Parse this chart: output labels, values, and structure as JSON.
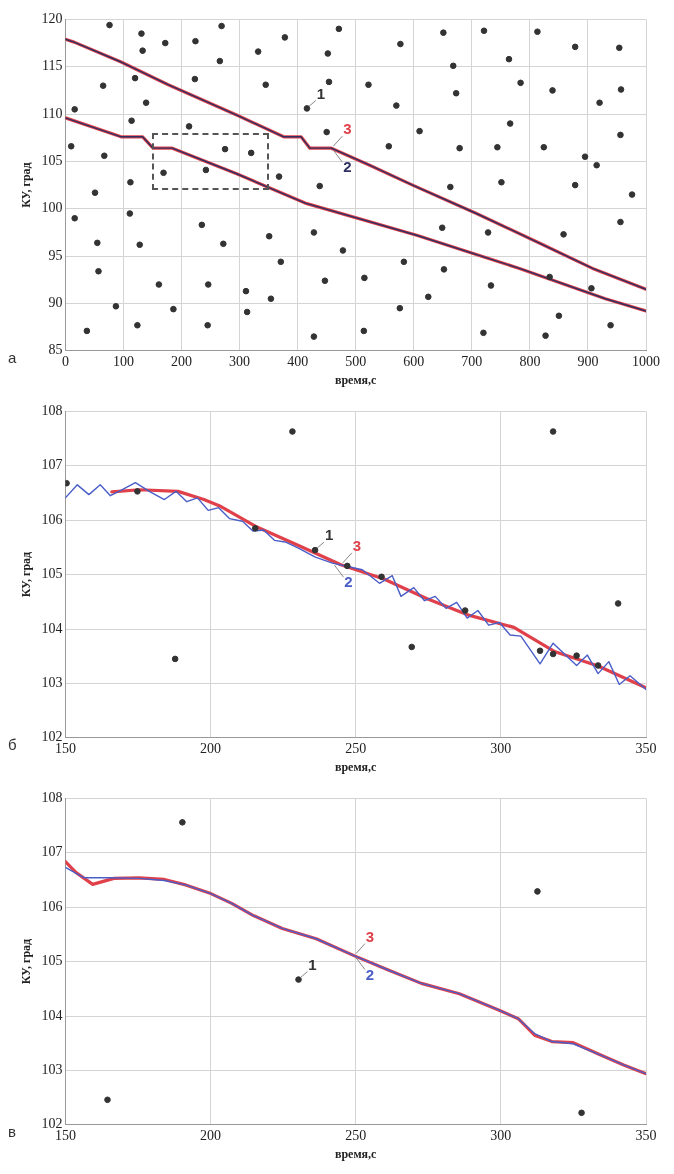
{
  "chart_data": [
    {
      "type": "line",
      "xlabel": "время,с",
      "ylabel": "КУ, град",
      "xlim": [
        0,
        1000
      ],
      "ylim": [
        85,
        120
      ],
      "xticks": [
        0,
        100,
        200,
        300,
        400,
        500,
        600,
        700,
        800,
        900,
        1000
      ],
      "yticks": [
        85,
        90,
        95,
        100,
        105,
        110,
        115,
        120
      ],
      "grid": true,
      "annotations": [
        "а"
      ],
      "series": [
        {
          "type": "scatter",
          "name": "1",
          "marker": "circle",
          "color": "#333333",
          "x": [
            416,
            76,
            131,
            133,
            172,
            224,
            269,
            266,
            332,
            378,
            471,
            452,
            577,
            651,
            721,
            813,
            878,
            954,
            65,
            120,
            223,
            345,
            454,
            522,
            668,
            673,
            764,
            784,
            839,
            957,
            16,
            139,
            570,
            920,
            114,
            213,
            275,
            320,
            450,
            610,
            766,
            956,
            10,
            67,
            169,
            112,
            242,
            368,
            438,
            557,
            679,
            744,
            824,
            895,
            915,
            751,
            663,
            878,
            976,
            51,
            111,
            16,
            235,
            351,
            428,
            649,
            728,
            858,
            956,
            55,
            128,
            272,
            478,
            57,
            161,
            246,
            311,
            371,
            447,
            515,
            583,
            652,
            733,
            834,
            906,
            87,
            186,
            313,
            354,
            576,
            625,
            850,
            37,
            124,
            245,
            428,
            514,
            720,
            827,
            939
          ],
          "values": [
            110.6,
            119.4,
            118.5,
            116.7,
            117.5,
            117.7,
            119.3,
            115.6,
            116.6,
            118.1,
            119.0,
            116.4,
            117.4,
            118.6,
            118.8,
            118.7,
            117.1,
            117.0,
            113.0,
            113.8,
            113.7,
            113.1,
            113.4,
            113.1,
            115.1,
            112.2,
            115.8,
            113.3,
            112.5,
            112.6,
            110.5,
            111.2,
            110.9,
            111.2,
            109.3,
            108.7,
            106.3,
            105.9,
            108.1,
            108.2,
            109.0,
            107.8,
            106.6,
            105.6,
            103.8,
            102.8,
            104.1,
            103.4,
            102.4,
            106.6,
            106.4,
            106.5,
            106.5,
            105.5,
            104.6,
            102.8,
            102.3,
            102.5,
            101.5,
            101.7,
            99.5,
            99.0,
            98.3,
            97.1,
            97.5,
            98.0,
            97.5,
            97.3,
            98.6,
            96.4,
            96.2,
            96.3,
            95.6,
            93.4,
            92.0,
            92.0,
            91.3,
            94.4,
            92.4,
            92.7,
            94.4,
            93.6,
            91.9,
            92.8,
            91.6,
            89.7,
            89.4,
            89.1,
            90.5,
            89.5,
            90.7,
            88.7,
            87.1,
            87.7,
            87.7,
            86.5,
            87.1,
            86.9,
            86.6,
            87.7
          ]
        },
        {
          "name": "3",
          "color": "#e0404a",
          "x": [
            0,
            15,
            96,
            177,
            295,
            376,
            406,
            421,
            458,
            524,
            598,
            708,
            819,
            908,
            1000
          ],
          "values": [
            117.9,
            117.6,
            115.5,
            113.1,
            109.9,
            107.6,
            107.6,
            106.4,
            106.4,
            104.6,
            102.5,
            99.5,
            96.3,
            93.7,
            91.5
          ]
        },
        {
          "name": "2",
          "color": "#2d3060",
          "x": [
            0,
            15,
            96,
            177,
            295,
            376,
            406,
            421,
            458,
            524,
            598,
            708,
            819,
            908,
            1000
          ],
          "values": [
            117.9,
            117.6,
            115.5,
            113.1,
            109.9,
            107.6,
            107.6,
            106.4,
            106.4,
            104.6,
            102.5,
            99.5,
            96.3,
            93.7,
            91.5
          ]
        },
        {
          "color": "#e0404a",
          "x": [
            0,
            96,
            133,
            151,
            184,
            295,
            413,
            605,
            782,
            930,
            1000
          ],
          "values": [
            109.6,
            107.6,
            107.6,
            106.4,
            106.4,
            103.7,
            100.6,
            97.2,
            93.7,
            90.5,
            89.2
          ]
        },
        {
          "color": "#2d3060",
          "x": [
            0,
            96,
            133,
            151,
            184,
            295,
            413,
            605,
            782,
            930,
            1000
          ],
          "values": [
            109.6,
            107.6,
            107.6,
            106.4,
            106.4,
            103.7,
            100.6,
            97.2,
            93.7,
            90.5,
            89.2
          ]
        }
      ]
    },
    {
      "type": "line",
      "xlabel": "время,с",
      "ylabel": "КУ, град",
      "xlim": [
        150,
        350
      ],
      "ylim": [
        102,
        108
      ],
      "xticks": [
        150,
        200,
        250,
        300,
        350
      ],
      "yticks": [
        102,
        103,
        104,
        105,
        106,
        107,
        108
      ],
      "grid": true,
      "annotations": [
        "б"
      ],
      "series": [
        {
          "type": "scatter",
          "name": "1",
          "marker": "circle",
          "color": "#333333",
          "x": [
            236,
            228.2,
            318.0,
            187.8,
            269.3,
            340.4,
            150.4,
            174.8,
            215.4,
            247.1,
            258.9,
            287.7,
            313.5,
            318,
            326.1,
            333.5
          ],
          "values": [
            105.45,
            107.63,
            107.63,
            103.45,
            103.67,
            104.47,
            106.68,
            106.53,
            105.85,
            105.16,
            104.96,
            104.34,
            103.6,
            103.54,
            103.51,
            103.33
          ]
        },
        {
          "name": "3",
          "color": "#e0404a",
          "x": [
            166,
            175.5,
            188.8,
            197.7,
            203.6,
            215.4,
            230.1,
            244.9,
            259.7,
            274.4,
            289.2,
            304.5,
            318.7,
            333.5,
            350
          ],
          "values": [
            106.52,
            106.56,
            106.53,
            106.38,
            106.25,
            105.89,
            105.54,
            105.18,
            104.92,
            104.56,
            104.25,
            104.03,
            103.58,
            103.32,
            102.92
          ]
        },
        {
          "name": "2",
          "color": "#4a5ec8",
          "x": [
            150,
            154.1,
            158.1,
            162.0,
            165.5,
            169.6,
            174.1,
            179.2,
            184.1,
            188.1,
            191.8,
            195.5,
            199.2,
            202.8,
            206.5,
            211.0,
            214.6,
            218.3,
            222.0,
            225.7,
            230.1,
            236.1,
            242.0,
            247.9,
            252.3,
            258.2,
            262.6,
            265.6,
            270.0,
            273.7,
            277.4,
            281.1,
            284.8,
            288.4,
            292.1,
            295.8,
            299.5,
            303.2,
            306.9,
            313.5,
            318.0,
            326.1,
            329.8,
            333.5,
            337.2,
            340.8,
            344.5,
            350
          ],
          "values": [
            106.41,
            106.65,
            106.47,
            106.65,
            106.45,
            106.56,
            106.69,
            106.52,
            106.38,
            106.53,
            106.34,
            106.41,
            106.18,
            106.23,
            106.03,
            105.98,
            105.8,
            105.82,
            105.63,
            105.6,
            105.49,
            105.32,
            105.21,
            105.14,
            105.09,
            104.84,
            104.98,
            104.6,
            104.76,
            104.52,
            104.6,
            104.38,
            104.49,
            104.2,
            104.34,
            104.07,
            104.12,
            103.89,
            103.87,
            103.36,
            103.74,
            103.33,
            103.52,
            103.18,
            103.4,
            102.98,
            103.14,
            102.89
          ]
        }
      ]
    },
    {
      "type": "line",
      "xlabel": "время,с",
      "ylabel": "КУ, град",
      "xlim": [
        150,
        350
      ],
      "ylim": [
        102,
        108
      ],
      "xticks": [
        150,
        200,
        250,
        300,
        350
      ],
      "yticks": [
        102,
        103,
        104,
        105,
        106,
        107,
        108
      ],
      "grid": true,
      "annotations": [
        "в"
      ],
      "series": [
        {
          "type": "scatter",
          "name": "1",
          "marker": "circle",
          "color": "#333333",
          "x": [
            230.3,
            190.3,
            164.5,
            312.6,
            327.8
          ],
          "values": [
            104.67,
            107.56,
            102.46,
            106.29,
            102.22
          ]
        },
        {
          "name": "3",
          "color": "#e0404a",
          "x": [
            150,
            153.6,
            159.4,
            166.7,
            175.4,
            184.1,
            191.4,
            200.1,
            207.3,
            214.6,
            224.7,
            236.4,
            249.4,
            261.0,
            272.6,
            285.7,
            298.8,
            306.0,
            311.8,
            317.6,
            324.9,
            333.6,
            342.3,
            350
          ],
          "values": [
            106.84,
            106.64,
            106.42,
            106.53,
            106.54,
            106.51,
            106.41,
            106.25,
            106.07,
            105.85,
            105.61,
            105.42,
            105.11,
            104.85,
            104.6,
            104.41,
            104.12,
            103.95,
            103.64,
            103.53,
            103.51,
            103.3,
            103.1,
            102.94
          ]
        },
        {
          "name": "2",
          "color": "#4a5ec8",
          "x": [
            150,
            156.5,
            165.2,
            175.4,
            184.1,
            191.4,
            200.1,
            207.3,
            214.6,
            224.7,
            236.4,
            249.4,
            261.0,
            272.6,
            285.7,
            298.8,
            306.0,
            311.8,
            317.6,
            324.9,
            333.6,
            342.3,
            350
          ],
          "values": [
            106.73,
            106.54,
            106.54,
            106.53,
            106.49,
            106.41,
            106.25,
            106.07,
            105.85,
            105.61,
            105.42,
            105.11,
            104.85,
            104.6,
            104.41,
            104.12,
            103.95,
            103.67,
            103.53,
            103.49,
            103.3,
            103.1,
            102.94
          ]
        }
      ]
    }
  ]
}
